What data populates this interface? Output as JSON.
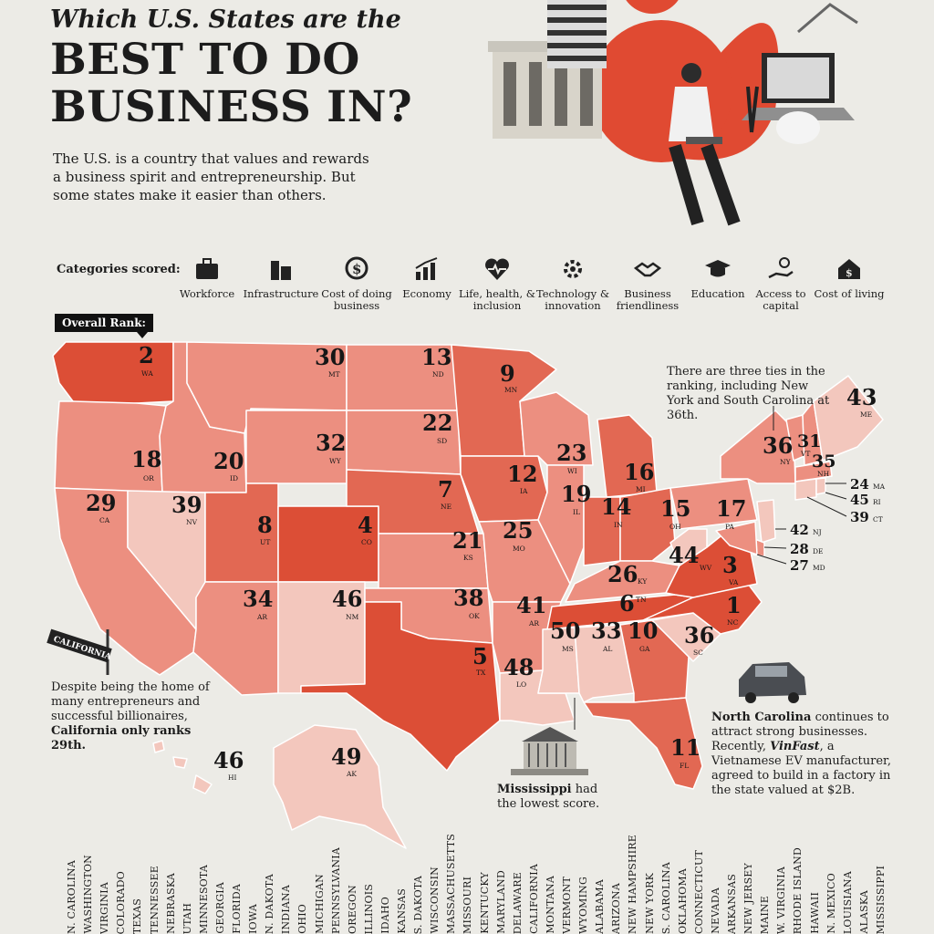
{
  "header": {
    "kicker": "Which U.S. States are the",
    "title_line1": "BEST TO DO",
    "title_line2": "BUSINESS IN?",
    "intro": "The U.S. is a country that values and rewards a business spirit and entrepreneurship. But some states make it easier than others."
  },
  "categories": {
    "label": "Categories scored:",
    "items": [
      {
        "label": "Workforce",
        "icon": "briefcase-icon"
      },
      {
        "label": "Infrastructure",
        "icon": "buildings-icon"
      },
      {
        "label": "Cost of doing business",
        "icon": "dollar-coin-icon"
      },
      {
        "label": "Economy",
        "icon": "bar-chart-icon"
      },
      {
        "label": "Life, health, & inclusion",
        "icon": "heart-pulse-icon"
      },
      {
        "label": "Technology & innovation",
        "icon": "circuit-gear-icon"
      },
      {
        "label": "Business friendliness",
        "icon": "handshake-icon"
      },
      {
        "label": "Education",
        "icon": "graduation-cap-icon"
      },
      {
        "label": "Access to capital",
        "icon": "hand-coin-icon"
      },
      {
        "label": "Cost of living",
        "icon": "house-dollar-icon"
      }
    ]
  },
  "rank_label": "Overall Rank:",
  "colors": {
    "background": "#ecebe6",
    "dark": "#d9402c",
    "mid": "#e9877a",
    "light": "#f2c6bc",
    "border": "#ffffff"
  },
  "states": [
    {
      "abbr": "WA",
      "rank": "2"
    },
    {
      "abbr": "MT",
      "rank": "30"
    },
    {
      "abbr": "ND",
      "rank": "13"
    },
    {
      "abbr": "MN",
      "rank": "9"
    },
    {
      "abbr": "OR",
      "rank": "18"
    },
    {
      "abbr": "ID",
      "rank": "20"
    },
    {
      "abbr": "WY",
      "rank": "32"
    },
    {
      "abbr": "SD",
      "rank": "22"
    },
    {
      "abbr": "WI",
      "rank": "23"
    },
    {
      "abbr": "MI",
      "rank": "16"
    },
    {
      "abbr": "NY",
      "rank": "36"
    },
    {
      "abbr": "VT",
      "rank": "31"
    },
    {
      "abbr": "NH",
      "rank": "35"
    },
    {
      "abbr": "ME",
      "rank": "43"
    },
    {
      "abbr": "CA",
      "rank": "29"
    },
    {
      "abbr": "NV",
      "rank": "39"
    },
    {
      "abbr": "UT",
      "rank": "8"
    },
    {
      "abbr": "CO",
      "rank": "4"
    },
    {
      "abbr": "NE",
      "rank": "7"
    },
    {
      "abbr": "IA",
      "rank": "12"
    },
    {
      "abbr": "IL",
      "rank": "19"
    },
    {
      "abbr": "IN",
      "rank": "14"
    },
    {
      "abbr": "OH",
      "rank": "15"
    },
    {
      "abbr": "PA",
      "rank": "17"
    },
    {
      "abbr": "KS",
      "rank": "21"
    },
    {
      "abbr": "MO",
      "rank": "25"
    },
    {
      "abbr": "KY",
      "rank": "26"
    },
    {
      "abbr": "WV",
      "rank": "44"
    },
    {
      "abbr": "VA",
      "rank": "3"
    },
    {
      "abbr": "AR",
      "rank": "34"
    },
    {
      "abbr": "NM",
      "rank": "46"
    },
    {
      "abbr": "OK",
      "rank": "38"
    },
    {
      "abbr": "AR",
      "rank": "41"
    },
    {
      "abbr": "TN",
      "rank": "6"
    },
    {
      "abbr": "NC",
      "rank": "1"
    },
    {
      "abbr": "MS",
      "rank": "50"
    },
    {
      "abbr": "AL",
      "rank": "33"
    },
    {
      "abbr": "GA",
      "rank": "10"
    },
    {
      "abbr": "SC",
      "rank": "36"
    },
    {
      "abbr": "TX",
      "rank": "5"
    },
    {
      "abbr": "LO",
      "rank": "48"
    },
    {
      "abbr": "FL",
      "rank": "11"
    },
    {
      "abbr": "HI",
      "rank": "46"
    },
    {
      "abbr": "AK",
      "rank": "49"
    }
  ],
  "northeast_small": [
    {
      "abbr": "MA",
      "rank": "24"
    },
    {
      "abbr": "RI",
      "rank": "45"
    },
    {
      "abbr": "CT",
      "rank": "39"
    },
    {
      "abbr": "NJ",
      "rank": "42"
    },
    {
      "abbr": "DE",
      "rank": "28"
    },
    {
      "abbr": "MD",
      "rank": "27"
    }
  ],
  "notes": {
    "ties": "There are three ties in the ranking, including New York and South Carolina at 36th.",
    "california_pre": "Despite being the home of many entrepreneurs and successful billionaires, ",
    "california_bold": "California only ranks 29th.",
    "nc_bold": "North Carolina",
    "nc_text1": " continues to attract strong businesses. Recently, ",
    "nc_brand": "VinFast",
    "nc_text2": ", a Vietnamese EV manufacturer, agreed to build in a factory in the state valued at $2B.",
    "ms_bold": "Mississippi",
    "ms_text": " had the lowest score.",
    "sign_text": "CALIFORNIA"
  },
  "bottom_names": [
    "N. CAROLINA",
    "WASHINGTON",
    "VIRGINIA",
    "COLORADO",
    "TEXAS",
    "TENNESSEE",
    "NEBRASKA",
    "UTAH",
    "MINNESOTA",
    "GEORGIA",
    "FLORIDA",
    "IOWA",
    "N. DAKOTA",
    "INDIANA",
    "OHIO",
    "MICHIGAN",
    "PENNSYLVANIA",
    "OREGON",
    "ILLINOIS",
    "IDAHO",
    "KANSAS",
    "S. DAKOTA",
    "WISCONSIN",
    "MASSACHUSETTS",
    "MISSOURI",
    "KENTUCKY",
    "MARYLAND",
    "DELAWARE",
    "CALIFORNIA",
    "MONTANA",
    "VERMONT",
    "WYOMING",
    "ALABAMA",
    "ARIZONA",
    "NEW HAMPSHIRE",
    "NEW YORK",
    "S. CAROLINA",
    "OKLAHOMA",
    "CONNECTICUT",
    "NEVADA",
    "ARKANSAS",
    "NEW JERSEY",
    "MAINE",
    "W. VIRGINIA",
    "RHODE ISLAND",
    "HAWAII",
    "N. MEXICO",
    "LOUISIANA",
    "ALASKA",
    "MISSISSIPPI"
  ]
}
